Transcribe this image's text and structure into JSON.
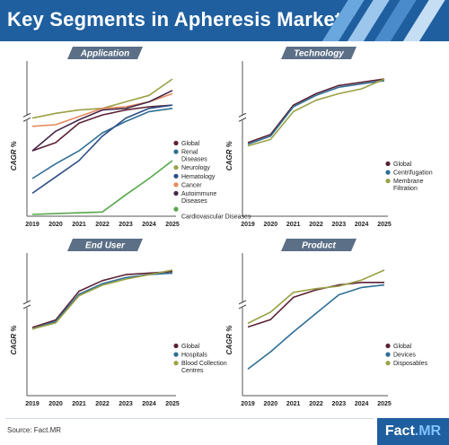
{
  "header": {
    "title": "Key Segments in Apheresis Market"
  },
  "footer": {
    "source": "Source: Fact.MR",
    "logo_prefix": "Fact",
    "logo_suffix": ".MR"
  },
  "colors": {
    "header_bg": "#1f5f9f",
    "panel_tag": "#5b6f86",
    "stripes": [
      "#6aa7de",
      "#9cc6ec",
      "#4a8bcb",
      "#c5def4"
    ]
  },
  "chart_data": [
    {
      "type": "line",
      "title": "Application",
      "ylabel": "CAGR %",
      "x": [
        2019,
        2020,
        2021,
        2022,
        2023,
        2024,
        2025
      ],
      "legend_position": "right",
      "series": [
        {
          "name": "Global",
          "color": "#5b2236",
          "values": [
            3.9,
            4.4,
            5.6,
            6.1,
            6.4,
            6.6,
            6.7
          ]
        },
        {
          "name": "Renal Diseases",
          "color": "#2f6f95",
          "values": [
            2.2,
            3.1,
            3.9,
            5.0,
            5.7,
            6.3,
            6.5
          ]
        },
        {
          "name": "Neurology",
          "color": "#9aa145",
          "values": [
            5.9,
            6.2,
            6.4,
            6.5,
            6.9,
            7.3,
            8.3
          ]
        },
        {
          "name": "Hematology",
          "color": "#2c4d86",
          "values": [
            1.3,
            2.3,
            3.3,
            4.8,
            5.9,
            6.5,
            6.7
          ]
        },
        {
          "name": "Cancer",
          "color": "#e58a5a",
          "values": [
            5.4,
            5.5,
            6.0,
            6.5,
            6.6,
            6.9,
            7.4
          ]
        },
        {
          "name": "Autoimmune Diseases",
          "color": "#46274a",
          "values": [
            3.9,
            5.1,
            5.8,
            6.4,
            6.5,
            6.9,
            7.6
          ]
        },
        {
          "name": "Cardiovascular Diseases",
          "color": "#56a84a",
          "values": [
            0.0,
            0.05,
            0.1,
            0.15,
            1.2,
            2.2,
            3.3
          ]
        }
      ]
    },
    {
      "type": "line",
      "title": "Technology",
      "ylabel": "CAGR %",
      "x": [
        2019,
        2020,
        2021,
        2022,
        2023,
        2024,
        2025
      ],
      "legend_position": "right",
      "series": [
        {
          "name": "Global",
          "color": "#5b2236",
          "values": [
            4.4,
            4.9,
            6.7,
            7.4,
            7.9,
            8.1,
            8.3
          ]
        },
        {
          "name": "Centrifugation",
          "color": "#2f6f95",
          "values": [
            4.3,
            4.8,
            6.6,
            7.3,
            7.8,
            8.0,
            8.2
          ]
        },
        {
          "name": "Membrane Filtration",
          "color": "#9aa145",
          "values": [
            4.2,
            4.6,
            6.3,
            7.0,
            7.4,
            7.7,
            8.3
          ]
        }
      ]
    },
    {
      "type": "line",
      "title": "End User",
      "ylabel": "CAGR %",
      "x": [
        2019,
        2020,
        2021,
        2022,
        2023,
        2024,
        2025
      ],
      "legend_position": "right",
      "series": [
        {
          "name": "Global",
          "color": "#5b2236",
          "values": [
            4.4,
            4.9,
            6.8,
            7.5,
            7.9,
            8.0,
            8.1
          ]
        },
        {
          "name": "Hospitals",
          "color": "#2f6f95",
          "values": [
            4.3,
            4.8,
            6.6,
            7.3,
            7.7,
            7.9,
            8.0
          ]
        },
        {
          "name": "Blood Collection Centres",
          "color": "#9aa145",
          "values": [
            4.3,
            4.7,
            6.5,
            7.2,
            7.6,
            7.9,
            8.2
          ]
        }
      ]
    },
    {
      "type": "line",
      "title": "Product",
      "ylabel": "CAGR %",
      "x": [
        2019,
        2020,
        2021,
        2022,
        2023,
        2024,
        2025
      ],
      "legend_position": "right",
      "series": [
        {
          "name": "Global",
          "color": "#5b2236",
          "values": [
            5.4,
            6.0,
            7.8,
            8.4,
            8.8,
            9.0,
            9.0
          ]
        },
        {
          "name": "Devices",
          "color": "#2f6f95",
          "values": [
            2.0,
            3.4,
            5.0,
            6.5,
            8.0,
            8.6,
            8.8
          ]
        },
        {
          "name": "Disposables",
          "color": "#9aa145",
          "values": [
            5.7,
            6.6,
            8.2,
            8.5,
            8.7,
            9.2,
            10.0
          ]
        }
      ]
    }
  ]
}
